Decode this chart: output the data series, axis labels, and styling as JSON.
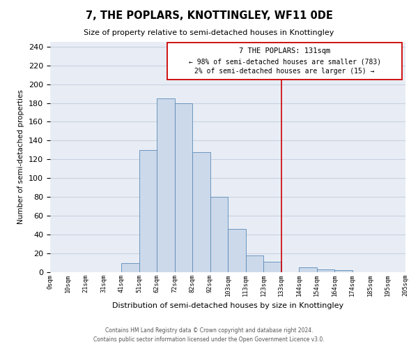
{
  "title": "7, THE POPLARS, KNOTTINGLEY, WF11 0DE",
  "subtitle": "Size of property relative to semi-detached houses in Knottingley",
  "xlabel": "Distribution of semi-detached houses by size in Knottingley",
  "ylabel": "Number of semi-detached properties",
  "bin_labels": [
    "0sqm",
    "10sqm",
    "21sqm",
    "31sqm",
    "41sqm",
    "51sqm",
    "62sqm",
    "72sqm",
    "82sqm",
    "92sqm",
    "103sqm",
    "113sqm",
    "123sqm",
    "133sqm",
    "144sqm",
    "154sqm",
    "164sqm",
    "174sqm",
    "185sqm",
    "195sqm",
    "205sqm"
  ],
  "bar_heights": [
    0,
    0,
    0,
    0,
    10,
    130,
    185,
    180,
    128,
    80,
    46,
    18,
    11,
    0,
    5,
    3,
    2,
    0,
    0,
    0
  ],
  "bar_color": "#ccd9ea",
  "bar_edge_color": "#5b8ab8",
  "grid_color": "#c8d2e0",
  "background_color": "#e8edf5",
  "annotation_box_title": "7 THE POPLARS: 131sqm",
  "annotation_line1": "← 98% of semi-detached houses are smaller (783)",
  "annotation_line2": "2% of semi-detached houses are larger (15) →",
  "vline_color": "#cc0000",
  "vline_x": 13,
  "ylim": [
    0,
    245
  ],
  "yticks": [
    0,
    20,
    40,
    60,
    80,
    100,
    120,
    140,
    160,
    180,
    200,
    220,
    240
  ],
  "footer_line1": "Contains HM Land Registry data © Crown copyright and database right 2024.",
  "footer_line2": "Contains public sector information licensed under the Open Government Licence v3.0."
}
